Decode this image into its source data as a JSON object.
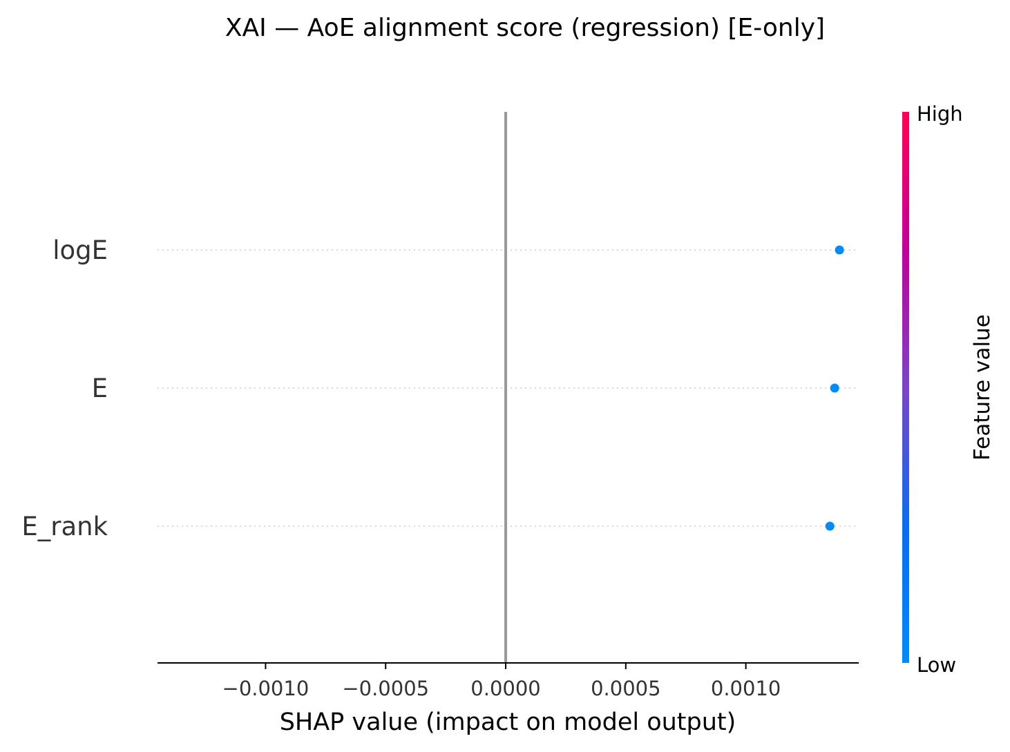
{
  "chart_data": {
    "type": "scatter",
    "title": "XAI — AoE alignment score (regression) [E-only]",
    "xlabel": "SHAP value (impact on model output)",
    "xlim": [
      -0.00145,
      0.00147
    ],
    "xticks": [
      -0.001,
      -0.0005,
      0.0,
      0.0005,
      0.001
    ],
    "xtick_labels": [
      "−0.0010",
      "−0.0005",
      "0.0000",
      "0.0005",
      "0.0010"
    ],
    "features": [
      "logE",
      "E",
      "E_rank"
    ],
    "points": [
      {
        "feature": "logE",
        "shap": 0.00139,
        "value_level": "low"
      },
      {
        "feature": "E",
        "shap": 0.00137,
        "value_level": "low"
      },
      {
        "feature": "E_rank",
        "shap": 0.00135,
        "value_level": "low"
      }
    ],
    "zero_line": 0.0,
    "grid": "dotted row guides",
    "colorbar": {
      "title": "Feature value",
      "high_label": "High",
      "low_label": "Low",
      "low_color": "#008bfb",
      "high_color": "#ff0052"
    },
    "colors": {
      "point": "#008bfb",
      "zero_line": "#999999",
      "axis": "#000000",
      "row_guide": "#cccccc"
    }
  }
}
